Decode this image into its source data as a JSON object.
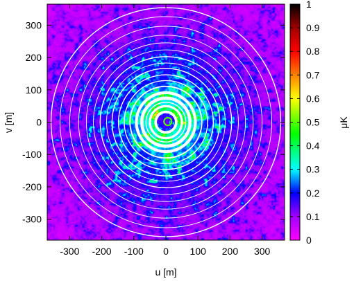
{
  "chart_data": {
    "type": "heatmap",
    "title": "",
    "xlabel": "u [m]",
    "ylabel": "v [m]",
    "xlim": [
      -370,
      370
    ],
    "ylim": [
      -365,
      365
    ],
    "xticks": [
      -300,
      -200,
      -100,
      0,
      100,
      200,
      300
    ],
    "yticks": [
      -300,
      -200,
      -100,
      0,
      100,
      200,
      300
    ],
    "colorbar": {
      "label": "μK",
      "range": [
        0,
        1
      ],
      "ticks": [
        0,
        0.1,
        0.2,
        0.3,
        0.4,
        0.5,
        0.6,
        0.7,
        0.8,
        0.9,
        1
      ],
      "palette_stops": [
        {
          "v": 0.0,
          "c": "#ff00ff"
        },
        {
          "v": 0.1,
          "c": "#a000ff"
        },
        {
          "v": 0.2,
          "c": "#0000ff"
        },
        {
          "v": 0.3,
          "c": "#00ffff"
        },
        {
          "v": 0.45,
          "c": "#00ff00"
        },
        {
          "v": 0.6,
          "c": "#ffff00"
        },
        {
          "v": 0.7,
          "c": "#ff8000"
        },
        {
          "v": 0.8,
          "c": "#ff0000"
        },
        {
          "v": 0.9,
          "c": "#a00000"
        },
        {
          "v": 1.0,
          "c": "#000000"
        }
      ]
    },
    "central_ring": {
      "radius": 12,
      "value": 0.5
    },
    "gap_rings": [
      {
        "r": 32,
        "w": 8
      },
      {
        "r": 50,
        "w": 7
      },
      {
        "r": 62,
        "w": 3
      },
      {
        "r": 75,
        "w": 10
      },
      {
        "r": 92,
        "w": 9
      },
      {
        "r": 112,
        "w": 4
      },
      {
        "r": 130,
        "w": 3
      },
      {
        "r": 148,
        "w": 3
      },
      {
        "r": 168,
        "w": 3
      },
      {
        "r": 185,
        "w": 2
      },
      {
        "r": 205,
        "w": 3
      },
      {
        "r": 226,
        "w": 2
      },
      {
        "r": 248,
        "w": 2
      },
      {
        "r": 272,
        "w": 2
      },
      {
        "r": 300,
        "w": 2
      },
      {
        "r": 330,
        "w": 2
      },
      {
        "r": 358,
        "w": 3
      }
    ]
  }
}
